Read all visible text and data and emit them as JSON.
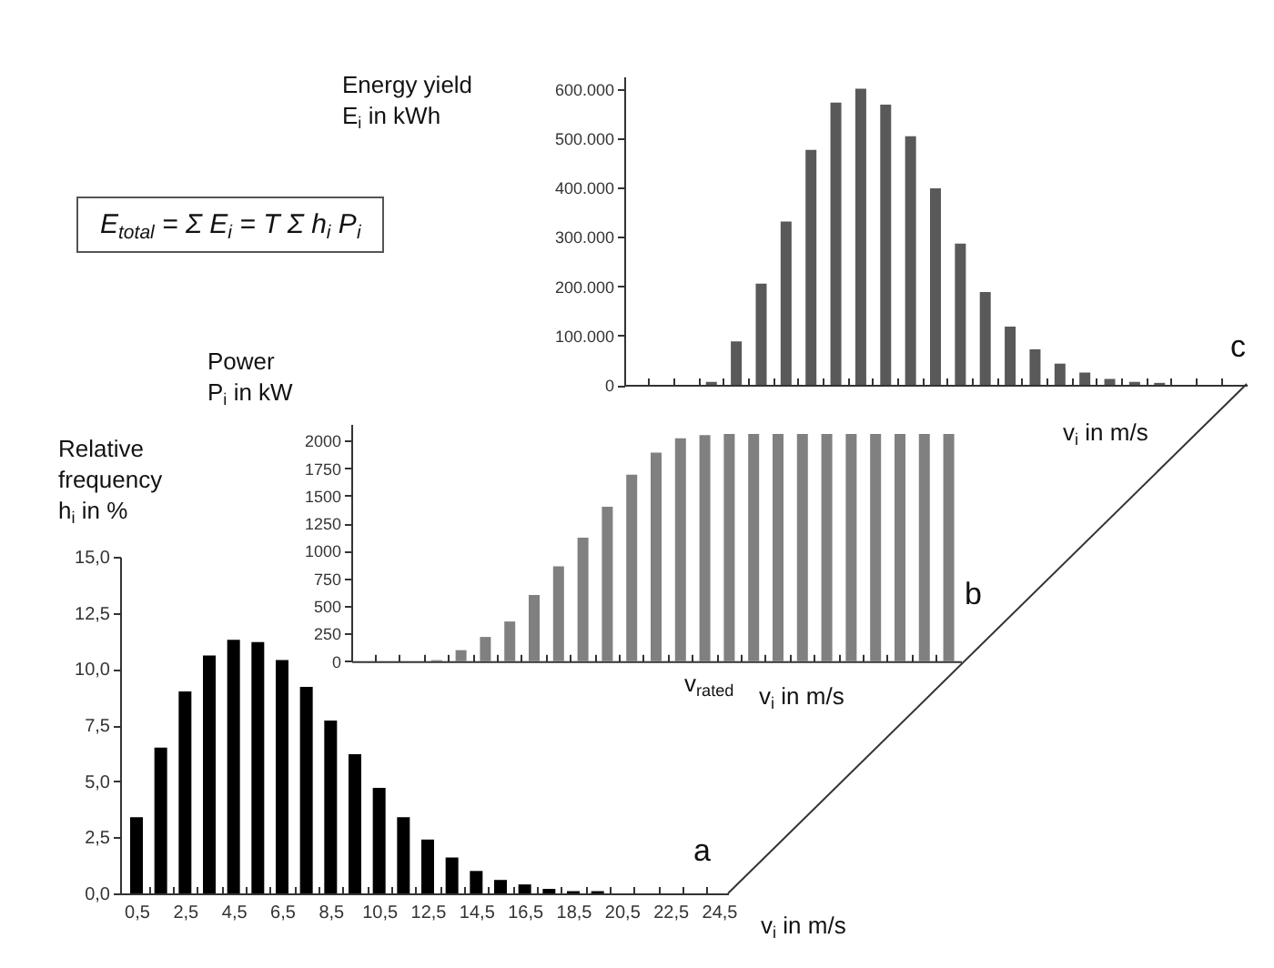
{
  "chart_data": [
    {
      "type": "bar",
      "ylabel": "Energy yield\nE$_{i}$ in kWh",
      "xlabel": "v$_{i}$ in m/s",
      "annotations": [
        "c",
        "E$_{total}$ = Σ E$_{i}$ = T Σ h$_{i}$ P$_{i}$"
      ],
      "categories": [
        null,
        null,
        null,
        null,
        null,
        null,
        null,
        null,
        null,
        null,
        null,
        null,
        null,
        null,
        null,
        null,
        null,
        null,
        null,
        null,
        null,
        null,
        null,
        null,
        null
      ],
      "values": [
        0,
        0,
        0,
        6000,
        88000,
        205000,
        331000,
        476000,
        572000,
        600000,
        568000,
        504000,
        398000,
        286000,
        188000,
        118000,
        72000,
        43000,
        25000,
        12000,
        6000,
        4000,
        0,
        0,
        0
      ],
      "color": "#595959",
      "ylim": [
        0,
        625000
      ],
      "yticks": [
        0,
        {
          "value": 100000,
          "label": "100.000"
        },
        {
          "value": 200000,
          "label": "200.000"
        },
        {
          "value": 300000,
          "label": "300.000"
        },
        {
          "value": 400000,
          "label": "400.000"
        },
        {
          "value": 500000,
          "label": "500.000"
        },
        {
          "value": 600000,
          "label": "600.000"
        }
      ]
    },
    {
      "type": "bar",
      "ylabel": "Power\nP$_{i}$ in kW",
      "xlabel": "v$_{i}$ in m/s",
      "annotations": [
        "b",
        "v$_{rated}$"
      ],
      "categories": [
        null,
        null,
        null,
        null,
        null,
        null,
        null,
        null,
        null,
        null,
        null,
        null,
        null,
        null,
        null,
        null,
        null,
        null,
        null,
        null,
        null,
        null,
        null,
        null,
        null
      ],
      "values": [
        0,
        0,
        0,
        10,
        100,
        220,
        360,
        600,
        860,
        1120,
        1400,
        1690,
        1890,
        2020,
        2050,
        2060,
        2060,
        2060,
        2060,
        2060,
        2060,
        2060,
        2060,
        2060,
        2060
      ],
      "color": "#808080",
      "ylim": [
        0,
        2150
      ],
      "yticks": [
        0,
        250,
        500,
        750,
        1000,
        1250,
        1500,
        1750,
        2000
      ]
    },
    {
      "type": "bar",
      "ylabel": "Relative\nfrequency\nh$_{i}$ in %",
      "xlabel": "v$_{i}$ in m/s",
      "annotations": [
        "a"
      ],
      "x": [
        0.5,
        1.5,
        2.5,
        3.5,
        4.5,
        5.5,
        6.5,
        7.5,
        8.5,
        9.5,
        10.5,
        11.5,
        12.5,
        13.5,
        14.5,
        15.5,
        16.5,
        17.5,
        18.5,
        19.5,
        20.5,
        21.5,
        22.5,
        23.5,
        24.5
      ],
      "values": [
        3.4,
        6.5,
        9.0,
        10.6,
        11.3,
        11.2,
        10.4,
        9.2,
        7.7,
        6.2,
        4.7,
        3.4,
        2.4,
        1.6,
        1.0,
        0.6,
        0.4,
        0.2,
        0.1,
        0.1,
        0,
        0,
        0,
        0,
        0
      ],
      "color": "#000000",
      "xlim": [
        0.2,
        24.5
      ],
      "xticks": [
        {
          "value": 0.5,
          "label": "0,5"
        },
        {
          "value": 1,
          "label": null
        },
        {
          "value": 2,
          "label": null
        },
        {
          "value": 2.5,
          "label": "2,5"
        },
        {
          "value": 3,
          "label": null
        },
        {
          "value": 4,
          "label": null
        },
        {
          "value": 4.5,
          "label": "4,5"
        },
        {
          "value": 5,
          "label": null
        },
        {
          "value": 6,
          "label": null
        },
        {
          "value": 6.5,
          "label": "6,5"
        },
        {
          "value": 7,
          "label": null
        },
        {
          "value": 8,
          "label": null
        },
        {
          "value": 8.5,
          "label": "8,5"
        },
        {
          "value": 9,
          "label": null
        },
        {
          "value": 10,
          "label": null
        },
        {
          "value": 10.5,
          "label": "10,5"
        },
        {
          "value": 11,
          "label": null
        },
        {
          "value": 12,
          "label": null
        },
        {
          "value": 12.5,
          "label": "12,5"
        },
        {
          "value": 13,
          "label": null
        },
        {
          "value": 14,
          "label": null
        },
        {
          "value": 14.5,
          "label": "14,5"
        },
        {
          "value": 15,
          "label": null
        },
        {
          "value": 16,
          "label": null
        },
        {
          "value": 16.5,
          "label": "16,5"
        },
        {
          "value": 17,
          "label": null
        },
        {
          "value": 18,
          "label": null
        },
        {
          "value": 18.5,
          "label": "18,5"
        },
        {
          "value": 19,
          "label": null
        },
        {
          "value": 20,
          "label": null
        },
        {
          "value": 20.5,
          "label": "20,5"
        },
        {
          "value": 21,
          "label": null
        },
        {
          "value": 22,
          "label": null
        },
        {
          "value": 22.5,
          "label": "22,5"
        },
        {
          "value": 23,
          "label": null
        },
        {
          "value": 24,
          "label": null
        },
        {
          "value": 24.5,
          "label": "24,5"
        }
      ],
      "ylim": [
        0,
        15
      ],
      "yticks": [
        {
          "value": 0,
          "label": "0,0"
        },
        {
          "value": 2.5,
          "label": "2,5"
        },
        {
          "value": 5,
          "label": "5,0"
        },
        {
          "value": 7.5,
          "label": "7,5"
        },
        {
          "value": 10,
          "label": "10,0"
        },
        {
          "value": 12.5,
          "label": "12,5"
        },
        {
          "value": 15,
          "label": "15,0"
        }
      ]
    }
  ]
}
